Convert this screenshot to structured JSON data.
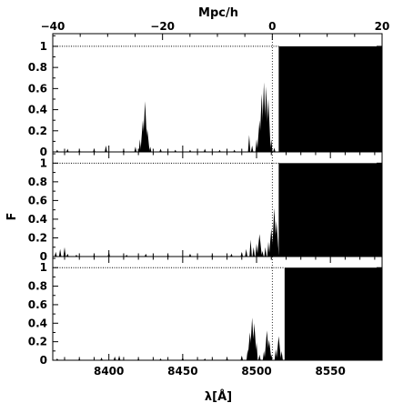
{
  "chart_data": {
    "type": "area",
    "xlabel": "λ[Å]",
    "x2label": "Mpc/h",
    "ylabel": "F",
    "xlim": [
      8362,
      8585
    ],
    "x_ticks": [
      "8400",
      "8450",
      "8500",
      "8550"
    ],
    "x_tick_values": [
      8400,
      8450,
      8500,
      8550
    ],
    "x2lim": [
      -40,
      20
    ],
    "x2_ticks": [
      "−40",
      "−20",
      "0",
      "20"
    ],
    "x2_tick_values": [
      -40,
      -20,
      0,
      20
    ],
    "ylim": [
      0,
      1.12
    ],
    "y_ticks": [
      "0",
      "0.2",
      "0.4",
      "0.6",
      "0.8",
      "1"
    ],
    "y_tick_values": [
      0,
      0.2,
      0.4,
      0.6,
      0.8,
      1
    ],
    "reference_level": 1,
    "reference_x_mpc": 0,
    "panels": [
      {
        "saturated_from": 8515,
        "spikes": [
          [
            8365,
            0.02
          ],
          [
            8372,
            0.03
          ],
          [
            8380,
            0.02
          ],
          [
            8390,
            0.03
          ],
          [
            8398,
            0.06
          ],
          [
            8410,
            0.02
          ],
          [
            8418,
            0.05
          ],
          [
            8421,
            0.12
          ],
          [
            8423,
            0.3
          ],
          [
            8424.5,
            0.48
          ],
          [
            8426,
            0.22
          ],
          [
            8428,
            0.05
          ],
          [
            8435,
            0.03
          ],
          [
            8445,
            0.02
          ],
          [
            8455,
            0.02
          ],
          [
            8465,
            0.03
          ],
          [
            8475,
            0.02
          ],
          [
            8485,
            0.02
          ],
          [
            8495,
            0.16
          ],
          [
            8497,
            0.06
          ],
          [
            8500,
            0.12
          ],
          [
            8502,
            0.3
          ],
          [
            8503.5,
            0.55
          ],
          [
            8505,
            0.66
          ],
          [
            8506.5,
            0.62
          ],
          [
            8508,
            0.5
          ],
          [
            8510,
            0.12
          ],
          [
            8512,
            0.04
          ]
        ]
      },
      {
        "saturated_from": 8515,
        "spikes": [
          [
            8364,
            0.05
          ],
          [
            8367,
            0.08
          ],
          [
            8370,
            0.1
          ],
          [
            8372,
            0.03
          ],
          [
            8378,
            0.02
          ],
          [
            8390,
            0.02
          ],
          [
            8400,
            0.05
          ],
          [
            8412,
            0.02
          ],
          [
            8425,
            0.03
          ],
          [
            8440,
            0.02
          ],
          [
            8455,
            0.03
          ],
          [
            8470,
            0.02
          ],
          [
            8483,
            0.03
          ],
          [
            8490,
            0.05
          ],
          [
            8493,
            0.08
          ],
          [
            8496,
            0.18
          ],
          [
            8498,
            0.1
          ],
          [
            8500,
            0.14
          ],
          [
            8502,
            0.24
          ],
          [
            8504,
            0.06
          ],
          [
            8506,
            0.1
          ],
          [
            8508,
            0.16
          ],
          [
            8510,
            0.3
          ],
          [
            8512,
            0.52
          ],
          [
            8513.5,
            0.38
          ]
        ]
      },
      {
        "saturated_from": 8519,
        "spikes": [
          [
            8365,
            0.02
          ],
          [
            8380,
            0.02
          ],
          [
            8395,
            0.03
          ],
          [
            8404,
            0.04
          ],
          [
            8407,
            0.05
          ],
          [
            8420,
            0.02
          ],
          [
            8435,
            0.02
          ],
          [
            8450,
            0.03
          ],
          [
            8465,
            0.02
          ],
          [
            8480,
            0.03
          ],
          [
            8490,
            0.05
          ],
          [
            8494,
            0.12
          ],
          [
            8495.5,
            0.3
          ],
          [
            8497,
            0.46
          ],
          [
            8498.5,
            0.4
          ],
          [
            8500,
            0.2
          ],
          [
            8502,
            0.06
          ],
          [
            8505,
            0.1
          ],
          [
            8507,
            0.32
          ],
          [
            8508.5,
            0.22
          ],
          [
            8510,
            0.06
          ],
          [
            8513,
            0.12
          ],
          [
            8515,
            0.26
          ],
          [
            8517,
            0.1
          ]
        ]
      }
    ]
  }
}
